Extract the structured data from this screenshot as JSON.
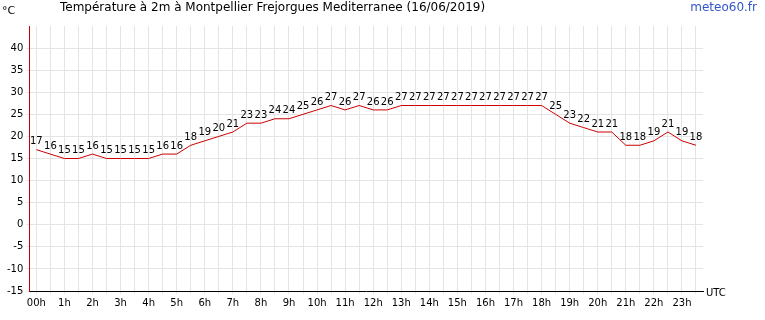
{
  "chart_data": {
    "type": "line",
    "title": "Température à 2m à Montpellier Frejorgues Mediterranee (16/06/2019)",
    "source": "meteo60.fr",
    "y_label": "°C",
    "x_label": "UTC",
    "categories": [
      "00h",
      null,
      "1h",
      null,
      "2h",
      null,
      "3h",
      null,
      "4h",
      null,
      "5h",
      null,
      "6h",
      null,
      "7h",
      null,
      "8h",
      null,
      "9h",
      null,
      "10h",
      null,
      "11h",
      null,
      "12h",
      null,
      "13h",
      null,
      "14h",
      null,
      "15h",
      null,
      "16h",
      null,
      "17h",
      null,
      "18h",
      null,
      "19h",
      null,
      "20h",
      null,
      "21h",
      null,
      "22h",
      null,
      "23h",
      null
    ],
    "values": [
      17,
      16,
      15,
      15,
      16,
      15,
      15,
      15,
      15,
      16,
      16,
      18,
      19,
      20,
      21,
      23,
      23,
      24,
      24,
      25,
      26,
      27,
      26,
      27,
      26,
      26,
      27,
      27,
      27,
      27,
      27,
      27,
      27,
      27,
      27,
      27,
      27,
      25,
      23,
      22,
      21,
      21,
      18,
      18,
      19,
      21,
      19,
      18
    ],
    "color": "#cc0000",
    "ylim": [
      -15,
      45
    ],
    "yticks": [
      -15,
      -10,
      -5,
      0,
      5,
      10,
      15,
      20,
      25,
      30,
      35,
      40
    ],
    "grid": true,
    "data_labels": true
  }
}
